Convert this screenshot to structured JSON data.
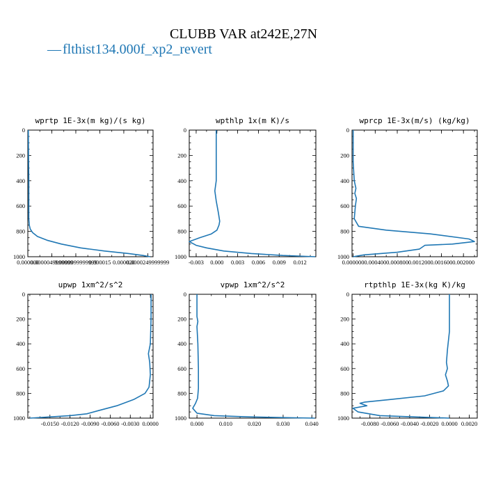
{
  "figure": {
    "title": "CLUBB VAR at242E,27N",
    "legend": {
      "marker": "—",
      "label": "flthist134.000f_xp2_revert"
    },
    "line_color": "#1f77b4"
  },
  "chart_data": [
    {
      "type": "line",
      "title": "wprtp  1E-3x(m kg)/(s kg)",
      "xlim": [
        0.0,
        2.61e-05
      ],
      "ylim": [
        1000,
        0
      ],
      "xticks": [
        0.0,
        4.9999999e-06,
        9.9999999e-06,
        1.5e-05,
        2e-05,
        2.49999999e-05
      ],
      "xticklabels": [
        "0.000000",
        "0.0000049999999",
        "0.0000099999999",
        "0.000015",
        "0.000020",
        "0.0000249999999"
      ],
      "yticks": [
        0,
        200,
        400,
        600,
        800,
        1000
      ],
      "series": [
        {
          "x": [
            1e-07,
            1.5e-07,
            2e-07,
            2e-07,
            2e-07,
            3e-07,
            5e-07,
            1e-06,
            2e-06,
            4e-06,
            7e-06,
            1.1e-05,
            1.6e-05,
            2.1e-05,
            2.4e-05,
            2.55e-05
          ],
          "y": [
            0,
            200,
            400,
            600,
            700,
            750,
            780,
            810,
            840,
            870,
            900,
            930,
            955,
            975,
            990,
            1000
          ]
        }
      ]
    },
    {
      "type": "line",
      "title": "wpthlp  1x(m K)/s",
      "xlim": [
        -0.004,
        0.0143
      ],
      "ylim": [
        1000,
        0
      ],
      "xticks": [
        -0.003,
        0.0,
        0.003,
        0.006,
        0.009,
        0.012
      ],
      "xticklabels": [
        "-0.003",
        "0.000",
        "0.003",
        "0.006",
        "0.009",
        "0.012"
      ],
      "yticks": [
        0,
        200,
        400,
        600,
        800,
        1000
      ],
      "series": [
        {
          "x": [
            -0.0001,
            -0.0001,
            -0.0001,
            -0.0003,
            -0.0001,
            0.0002,
            0.0004,
            0.0003,
            0.0,
            -0.0008,
            -0.0025,
            -0.004,
            -0.003,
            -0.0015,
            0.001,
            0.005,
            0.0095,
            0.0142
          ],
          "y": [
            0,
            200,
            400,
            480,
            560,
            650,
            720,
            750,
            790,
            820,
            850,
            880,
            910,
            930,
            955,
            975,
            990,
            1000
          ]
        }
      ]
    },
    {
      "type": "line",
      "title": "wprcp  1E-3x(m/s) (kg/kg)",
      "xlim": [
        -2e-05,
        0.00225
      ],
      "ylim": [
        1000,
        0
      ],
      "xticks": [
        0.0,
        0.0004,
        0.0008,
        0.0012,
        0.0016,
        0.002
      ],
      "xticklabels": [
        "0.000000",
        "0.000400",
        "0.000800",
        "0.001200",
        "0.001600",
        "0.002000"
      ],
      "yticks": [
        0,
        200,
        400,
        600,
        800,
        1000
      ],
      "series": [
        {
          "x": [
            0.0,
            0.0,
            2e-05,
            5e-05,
            3e-05,
            6e-05,
            4e-05,
            2e-05,
            0.0001,
            0.0006,
            0.0014,
            0.0021,
            0.0022,
            0.0018,
            0.0013,
            0.0012,
            0.0008,
            0.0002,
            0.0
          ],
          "y": [
            0,
            250,
            400,
            460,
            500,
            540,
            600,
            700,
            760,
            790,
            820,
            860,
            880,
            900,
            910,
            940,
            965,
            985,
            1000
          ]
        }
      ]
    },
    {
      "type": "line",
      "title": "upwp  1xm^2/s^2",
      "xlim": [
        -0.0183,
        0.0004
      ],
      "ylim": [
        1000,
        0
      ],
      "xticks": [
        -0.015,
        -0.012,
        -0.009,
        -0.006,
        -0.003,
        0.0
      ],
      "xticklabels": [
        "-0.0150",
        "-0.0120",
        "-0.0090",
        "-0.0060",
        "-0.0030",
        "0.0000"
      ],
      "yticks": [
        0,
        200,
        400,
        600,
        800,
        1000
      ],
      "series": [
        {
          "x": [
            0.0001,
            0.0001,
            0.0,
            -0.0003,
            -0.0001,
            0.0,
            -0.0002,
            -0.0008,
            -0.0025,
            -0.005,
            -0.0078,
            -0.0095,
            -0.012,
            -0.0155,
            -0.018
          ],
          "y": [
            0,
            200,
            400,
            480,
            550,
            650,
            750,
            800,
            850,
            900,
            940,
            965,
            980,
            992,
            1000
          ]
        }
      ]
    },
    {
      "type": "line",
      "title": "vpwp  1xm^2/s^2",
      "xlim": [
        -0.0027,
        0.0414
      ],
      "ylim": [
        1000,
        0
      ],
      "xticks": [
        0.0,
        0.01,
        0.02,
        0.03,
        0.04
      ],
      "xticklabels": [
        "0.000",
        "0.010",
        "0.020",
        "0.030",
        "0.040"
      ],
      "yticks": [
        0,
        200,
        400,
        600,
        800,
        1000
      ],
      "series": [
        {
          "x": [
            0.0,
            0.0,
            0.0003,
            0.0,
            0.0003,
            0.0005,
            0.0005,
            0.0002,
            -0.0005,
            -0.0015,
            0.0,
            0.006,
            0.018,
            0.031,
            0.041
          ],
          "y": [
            0,
            180,
            220,
            260,
            400,
            600,
            760,
            840,
            880,
            920,
            960,
            980,
            990,
            996,
            1000
          ]
        }
      ]
    },
    {
      "type": "line",
      "title": "rtpthlp  1E-3x(kg K)/kg",
      "xlim": [
        -0.0098,
        0.0028
      ],
      "ylim": [
        1000,
        0
      ],
      "xticks": [
        -0.008,
        -0.006,
        -0.004,
        -0.002,
        0.0,
        0.002
      ],
      "xticklabels": [
        "-0.0080",
        "-0.0060",
        "-0.0040",
        "-0.0020",
        "0.0000",
        "0.0020"
      ],
      "yticks": [
        0,
        200,
        400,
        600,
        800,
        1000
      ],
      "series": [
        {
          "x": [
            0.0,
            0.0,
            -0.0002,
            -0.0003,
            -0.0002,
            -0.0004,
            -0.0002,
            -0.0001,
            -0.0006,
            -0.0025,
            -0.006,
            -0.0085,
            -0.009,
            -0.0083,
            -0.0097,
            -0.0092,
            -0.007,
            0.0
          ],
          "y": [
            0,
            300,
            450,
            550,
            600,
            650,
            700,
            740,
            780,
            820,
            850,
            870,
            880,
            900,
            920,
            950,
            980,
            1000
          ]
        }
      ]
    }
  ]
}
